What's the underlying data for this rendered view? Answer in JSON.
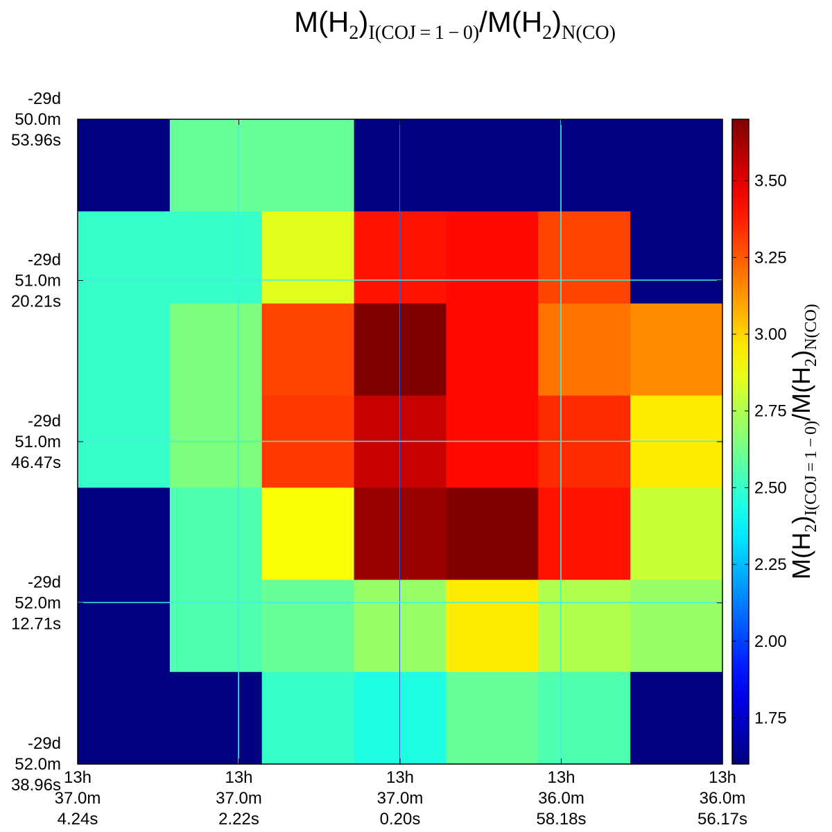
{
  "chart_data": {
    "type": "heatmap",
    "title": {
      "parts": [
        {
          "t": "M(H",
          "style": "main"
        },
        {
          "t": "2",
          "style": "sub"
        },
        {
          "t": ")",
          "style": "main"
        },
        {
          "t": "I(COJ = 1 − 0)",
          "style": "sub"
        },
        {
          "t": "/M(H",
          "style": "main"
        },
        {
          "t": "2",
          "style": "sub"
        },
        {
          "t": ")",
          "style": "main"
        },
        {
          "t": "N(CO)",
          "style": "sub"
        }
      ]
    },
    "colorbar_label": {
      "parts": [
        {
          "t": "M(H",
          "style": "main"
        },
        {
          "t": "2",
          "style": "sub"
        },
        {
          "t": ")",
          "style": "main"
        },
        {
          "t": "I(COJ = 1 − 0)",
          "style": "sub"
        },
        {
          "t": "/M(H",
          "style": "main"
        },
        {
          "t": "2",
          "style": "sub"
        },
        {
          "t": ")",
          "style": "main"
        },
        {
          "t": "N(CO)",
          "style": "sub"
        }
      ]
    },
    "colormap": "jet",
    "clim": [
      1.6,
      3.7
    ],
    "colorbar_ticks": [
      {
        "value": 1.75,
        "label": "1.75"
      },
      {
        "value": 2.0,
        "label": "2.00"
      },
      {
        "value": 2.25,
        "label": "2.25"
      },
      {
        "value": 2.5,
        "label": "2.50"
      },
      {
        "value": 2.75,
        "label": "2.75"
      },
      {
        "value": 3.0,
        "label": "3.00"
      },
      {
        "value": 3.25,
        "label": "3.25"
      },
      {
        "value": 3.5,
        "label": "3.50"
      }
    ],
    "grid_size": [
      7,
      7
    ],
    "values": [
      [
        1.6,
        2.6,
        2.6,
        1.6,
        1.6,
        1.6,
        1.6
      ],
      [
        2.5,
        2.5,
        2.85,
        3.4,
        3.42,
        3.3,
        1.6
      ],
      [
        2.5,
        2.65,
        3.3,
        3.7,
        3.42,
        3.2,
        3.15
      ],
      [
        2.5,
        2.65,
        3.32,
        3.55,
        3.42,
        3.35,
        2.95
      ],
      [
        1.6,
        2.55,
        2.9,
        3.65,
        3.7,
        3.4,
        2.8
      ],
      [
        1.6,
        2.55,
        2.6,
        2.7,
        2.95,
        2.75,
        2.7
      ],
      [
        1.6,
        1.6,
        2.5,
        2.45,
        2.6,
        2.55,
        1.6
      ]
    ],
    "x_ticks": [
      {
        "pos": 0.0,
        "lines": [
          "13h",
          "37.0m",
          "4.24s"
        ]
      },
      {
        "pos": 0.25,
        "lines": [
          "13h",
          "37.0m",
          "2.22s"
        ]
      },
      {
        "pos": 0.5,
        "lines": [
          "13h",
          "37.0m",
          "0.20s"
        ]
      },
      {
        "pos": 0.75,
        "lines": [
          "13h",
          "36.0m",
          "58.18s"
        ]
      },
      {
        "pos": 1.0,
        "lines": [
          "13h",
          "36.0m",
          "56.17s"
        ]
      }
    ],
    "y_ticks": [
      {
        "pos": 0.0,
        "lines": [
          "-29d",
          "50.0m",
          "53.96s"
        ]
      },
      {
        "pos": 0.25,
        "lines": [
          "-29d",
          "51.0m",
          "20.21s"
        ]
      },
      {
        "pos": 0.5,
        "lines": [
          "-29d",
          "51.0m",
          "46.47s"
        ]
      },
      {
        "pos": 0.75,
        "lines": [
          "-29d",
          "52.0m",
          "12.71s"
        ]
      },
      {
        "pos": 1.0,
        "lines": [
          "-29d",
          "52.0m",
          "38.96s"
        ]
      }
    ],
    "grid": true,
    "grid_color": "#3ff0e6",
    "legend_position": "right colorbar"
  }
}
